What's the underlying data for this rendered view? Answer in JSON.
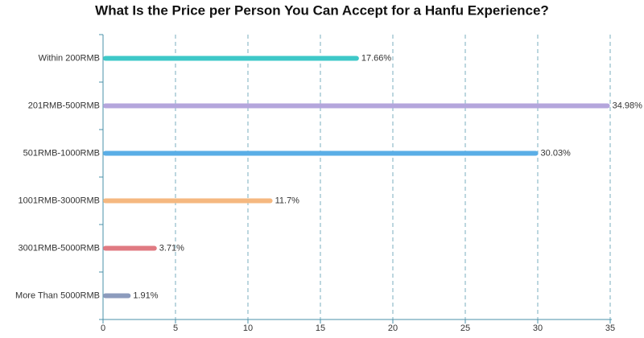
{
  "chart_data": {
    "type": "bar",
    "orientation": "horizontal",
    "title": "What Is the Price per Person You Can Accept for a Hanfu Experience?",
    "categories": [
      "Within 200RMB",
      "201RMB-500RMB",
      "501RMB-1000RMB",
      "1001RMB-3000RMB",
      "3001RMB-5000RMB",
      "More Than 5000RMB"
    ],
    "values": [
      17.66,
      34.98,
      30.03,
      11.7,
      3.71,
      1.91
    ],
    "value_labels": [
      "17.66%",
      "34.98%",
      "30.03%",
      "11.7%",
      "3.71%",
      "1.91%"
    ],
    "colors": [
      "#3ec8c8",
      "#b4a6dc",
      "#5aaee6",
      "#f5b880",
      "#e07a82",
      "#8c9bbd"
    ],
    "xlim": [
      0,
      35
    ],
    "xticks": [
      0,
      5,
      10,
      15,
      20,
      25,
      30,
      35
    ],
    "grid": true
  }
}
